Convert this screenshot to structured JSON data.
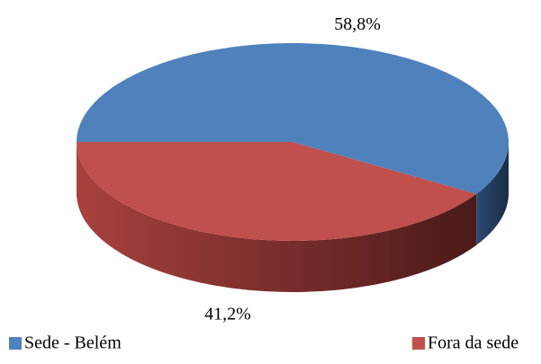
{
  "chart_data": {
    "type": "pie",
    "categories": [
      "Sede - Belém",
      "Fora da sede"
    ],
    "values": [
      58.8,
      41.2
    ],
    "value_labels": [
      "58,8%",
      "41,2%"
    ],
    "colors": [
      "#4f81bd",
      "#c0504d"
    ],
    "legend": "bottom"
  }
}
